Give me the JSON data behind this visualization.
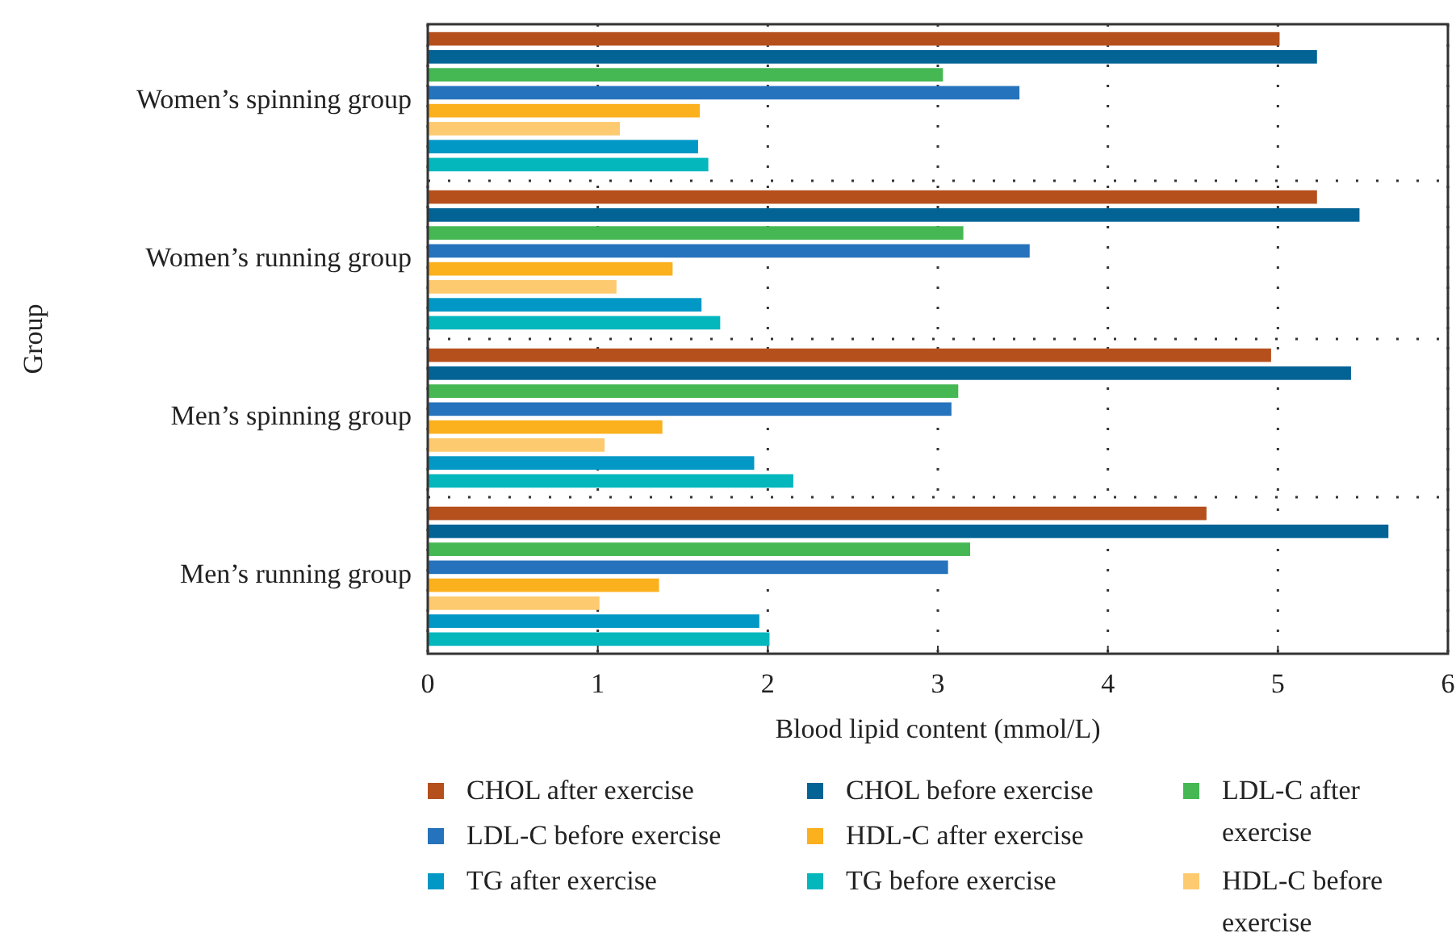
{
  "chart_data": {
    "type": "bar",
    "orientation": "horizontal",
    "xlabel": "Blood lipid content (mmol/L)",
    "ylabel": "Group",
    "categories": [
      "Women’s spinning group",
      "Women’s running group",
      "Men’s spinning group",
      "Men’s running group"
    ],
    "xlim": [
      0,
      6
    ],
    "xticks": [
      0,
      1,
      2,
      3,
      4,
      5,
      6
    ],
    "grid": true,
    "legend": "bottom",
    "series": [
      {
        "name": "CHOL after exercise",
        "color": "#b5501c",
        "values": [
          5.01,
          5.23,
          4.96,
          4.58
        ]
      },
      {
        "name": "CHOL before exercise",
        "color": "#036395",
        "values": [
          5.23,
          5.48,
          5.43,
          5.65
        ]
      },
      {
        "name": "LDL-C after exercise",
        "color": "#45b853",
        "values": [
          3.03,
          3.15,
          3.12,
          3.19
        ]
      },
      {
        "name": "LDL-C before exercise",
        "color": "#2673bd",
        "values": [
          3.48,
          3.54,
          3.08,
          3.06
        ]
      },
      {
        "name": "HDL-C after exercise",
        "color": "#fbb01d",
        "values": [
          1.6,
          1.44,
          1.38,
          1.36
        ]
      },
      {
        "name": "HDL-C before exercise",
        "color": "#fdca6f",
        "values": [
          1.13,
          1.11,
          1.04,
          1.01
        ]
      },
      {
        "name": "TG after exercise",
        "color": "#0298c6",
        "values": [
          1.59,
          1.61,
          1.92,
          1.95
        ]
      },
      {
        "name": "TG before exercise",
        "color": "#03b7bd",
        "values": [
          1.65,
          1.72,
          2.15,
          2.01
        ]
      }
    ]
  }
}
